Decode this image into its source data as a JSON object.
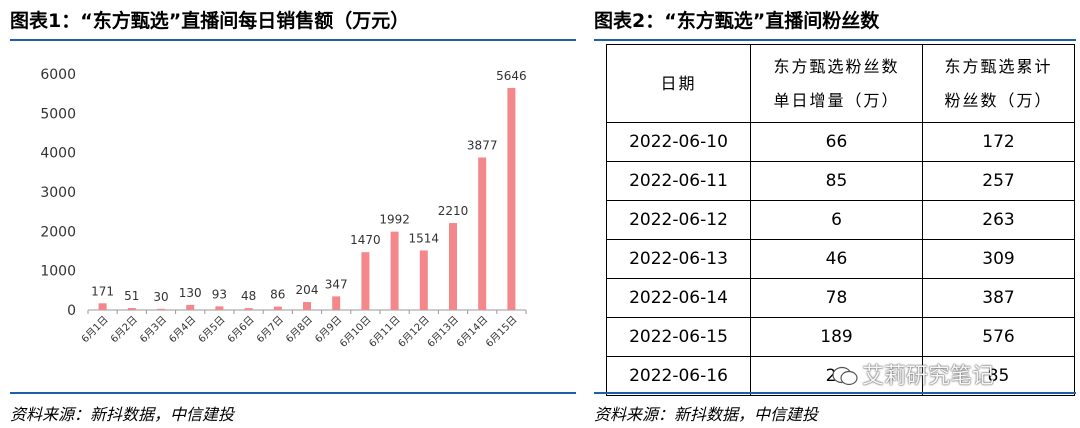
{
  "left": {
    "title": "图表1：“东方甄选”直播间每日销售额（万元）",
    "source": "资料来源：新抖数据，中信建投"
  },
  "right": {
    "title": "图表2：“东方甄选”直播间粉丝数",
    "source": "资料来源：新抖数据，中信建投",
    "table": {
      "headers": [
        "日期",
        "东方甄选粉丝数单日增量（万）",
        "东方甄选累计粉丝数（万）"
      ],
      "header_lines": [
        [
          "日期"
        ],
        [
          "东方甄选粉丝数",
          "单日增量（万）"
        ],
        [
          "东方甄选累计",
          "粉丝数（万）"
        ]
      ],
      "rows": [
        [
          "2022-06-10",
          "66",
          "172"
        ],
        [
          "2022-06-11",
          "85",
          "257"
        ],
        [
          "2022-06-12",
          "6",
          "263"
        ],
        [
          "2022-06-13",
          "46",
          "309"
        ],
        [
          "2022-06-14",
          "78",
          "387"
        ],
        [
          "2022-06-15",
          "189",
          "576"
        ],
        [
          "2022-06-16",
          "28",
          "85"
        ]
      ]
    }
  },
  "watermark": "艾莉研究笔记",
  "chart_data": {
    "type": "bar",
    "title": "",
    "xlabel": "",
    "ylabel": "",
    "categories": [
      "6月1日",
      "6月2日",
      "6月3日",
      "6月4日",
      "6月5日",
      "6月6日",
      "6月7日",
      "6月8日",
      "6月9日",
      "6月10日",
      "6月11日",
      "6月12日",
      "6月13日",
      "6月14日",
      "6月15日"
    ],
    "values": [
      171,
      51,
      30,
      130,
      93,
      48,
      86,
      204,
      347,
      1470,
      1992,
      1514,
      2210,
      3877,
      5646
    ],
    "labels": [
      "171",
      "51",
      "30",
      "130",
      "93",
      "48",
      "86",
      "204",
      "347",
      "1470",
      "1992",
      "1514",
      "2210",
      "3877",
      "5646"
    ],
    "ylim": [
      0,
      6000
    ],
    "yticks": [
      0,
      1000,
      2000,
      3000,
      4000,
      5000,
      6000
    ],
    "grid": false,
    "bar_color": "#f4878a"
  }
}
